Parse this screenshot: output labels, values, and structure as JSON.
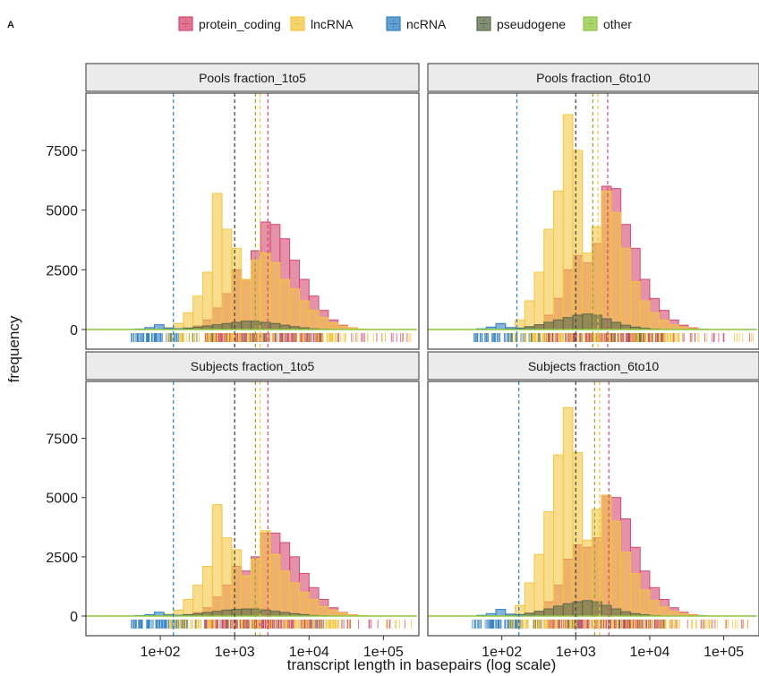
{
  "panel_tag": "A",
  "colors": {
    "protein_coding": "#d4486f",
    "lncRNA": "#f3c642",
    "ncRNA": "#2f7fbf",
    "pseudogene": "#5b6a4a",
    "other": "#8cc63f"
  },
  "chart_data": {
    "type": "histogram",
    "xlabel": "transcript length in basepairs (log scale)",
    "ylabel": "frequency",
    "x_scale": "log10",
    "xlim": [
      10,
      300000
    ],
    "ylim": [
      0,
      9600
    ],
    "x_ticks": [
      100,
      1000,
      10000,
      100000
    ],
    "x_tick_labels": [
      "1e+02",
      "1e+03",
      "1e+04",
      "1e+05"
    ],
    "y_ticks": [
      0,
      2500,
      5000,
      7500
    ],
    "y_tick_labels": [
      "0",
      "2500",
      "5000",
      "7500"
    ],
    "bin_width_log10": 0.13,
    "legend": [
      "protein_coding",
      "lncRNA",
      "ncRNA",
      "pseudogene",
      "other"
    ],
    "legend_position": "top",
    "grid": false,
    "facets": [
      {
        "label": "Pools fraction_1to5",
        "medians": {
          "ncRNA": 150,
          "pseudogene": 1000,
          "other": 1900,
          "lncRNA": 2200,
          "protein_coding": 2800
        },
        "series": [
          {
            "name": "lncRNA",
            "start_log10": 2.05,
            "values": [
              80,
              250,
              700,
              1400,
              2400,
              5700,
              4200,
              3400,
              2100,
              2900,
              3200,
              2800,
              2100,
              1700,
              1200,
              800,
              500,
              280,
              150,
              60,
              20
            ]
          },
          {
            "name": "protein_coding",
            "start_log10": 2.05,
            "values": [
              10,
              30,
              60,
              150,
              400,
              900,
              1500,
              2500,
              2100,
              3300,
              4500,
              4400,
              3800,
              2900,
              2100,
              1400,
              800,
              400,
              180,
              70,
              20
            ]
          },
          {
            "name": "pseudogene",
            "start_log10": 2.05,
            "values": [
              10,
              30,
              60,
              100,
              150,
              200,
              250,
              300,
              350,
              350,
              300,
              250,
              180,
              120,
              70,
              30,
              10
            ]
          },
          {
            "name": "ncRNA",
            "start_log10": 1.66,
            "values": [
              20,
              80,
              200,
              60,
              30,
              15,
              5
            ]
          }
        ]
      },
      {
        "label": "Pools fraction_6to10",
        "medians": {
          "ncRNA": 160,
          "pseudogene": 1000,
          "other": 1700,
          "lncRNA": 2000,
          "protein_coding": 2700
        },
        "series": [
          {
            "name": "lncRNA",
            "start_log10": 2.05,
            "values": [
              80,
              400,
              1200,
              2400,
              4200,
              5800,
              9000,
              7500,
              3200,
              4300,
              5800,
              4900,
              3400,
              2000,
              1200,
              700,
              400,
              200,
              100,
              40,
              15
            ]
          },
          {
            "name": "protein_coding",
            "start_log10": 2.05,
            "values": [
              10,
              30,
              80,
              200,
              600,
              1300,
              2500,
              3100,
              2800,
              3600,
              6000,
              5900,
              4400,
              3400,
              2100,
              1300,
              800,
              400,
              180,
              70,
              20
            ]
          },
          {
            "name": "pseudogene",
            "start_log10": 2.05,
            "values": [
              20,
              60,
              120,
              200,
              300,
              400,
              500,
              600,
              650,
              600,
              450,
              300,
              180,
              100,
              50,
              20
            ]
          },
          {
            "name": "ncRNA",
            "start_log10": 1.66,
            "values": [
              30,
              100,
              250,
              80,
              40,
              20,
              5
            ]
          }
        ]
      },
      {
        "label": "Subjects fraction_1to5",
        "medians": {
          "ncRNA": 150,
          "pseudogene": 1000,
          "other": 1900,
          "lncRNA": 2200,
          "protein_coding": 2800
        },
        "series": [
          {
            "name": "lncRNA",
            "start_log10": 2.05,
            "values": [
              80,
              250,
              700,
              1300,
              2100,
              4700,
              3300,
              2800,
              1700,
              2400,
              3600,
              2600,
              1900,
              1400,
              1000,
              700,
              400,
              250,
              130,
              50,
              20
            ]
          },
          {
            "name": "protein_coding",
            "start_log10": 2.05,
            "values": [
              10,
              30,
              60,
              150,
              350,
              800,
              1300,
              2100,
              1900,
              2500,
              3500,
              3500,
              3100,
              2500,
              1800,
              1200,
              700,
              350,
              150,
              60,
              20
            ]
          },
          {
            "name": "pseudogene",
            "start_log10": 2.05,
            "values": [
              10,
              30,
              60,
              100,
              150,
              200,
              250,
              280,
              300,
              300,
              260,
              200,
              150,
              100,
              60,
              25,
              10
            ]
          },
          {
            "name": "ncRNA",
            "start_log10": 1.66,
            "values": [
              20,
              60,
              160,
              50,
              25,
              10,
              5
            ]
          }
        ]
      },
      {
        "label": "Subjects fraction_6to10",
        "medians": {
          "ncRNA": 170,
          "pseudogene": 1000,
          "other": 1800,
          "lncRNA": 2100,
          "protein_coding": 2800
        },
        "series": [
          {
            "name": "lncRNA",
            "start_log10": 2.05,
            "values": [
              80,
              450,
              1400,
              2600,
              4400,
              6800,
              8800,
              6900,
              3200,
              4500,
              5100,
              4000,
              2700,
              1800,
              1100,
              650,
              380,
              200,
              100,
              40,
              15
            ]
          },
          {
            "name": "protein_coding",
            "start_log10": 2.05,
            "values": [
              10,
              30,
              80,
              200,
              600,
              1300,
              2400,
              3000,
              2900,
              3300,
              5100,
              5000,
              4100,
              2900,
              1900,
              1200,
              700,
              350,
              160,
              60,
              20
            ]
          },
          {
            "name": "pseudogene",
            "start_log10": 2.05,
            "values": [
              20,
              60,
              120,
              200,
              300,
              420,
              520,
              600,
              650,
              600,
              450,
              300,
              180,
              100,
              50,
              20
            ]
          },
          {
            "name": "ncRNA",
            "start_log10": 1.66,
            "values": [
              30,
              100,
              280,
              80,
              40,
              20,
              5
            ]
          }
        ]
      }
    ]
  }
}
